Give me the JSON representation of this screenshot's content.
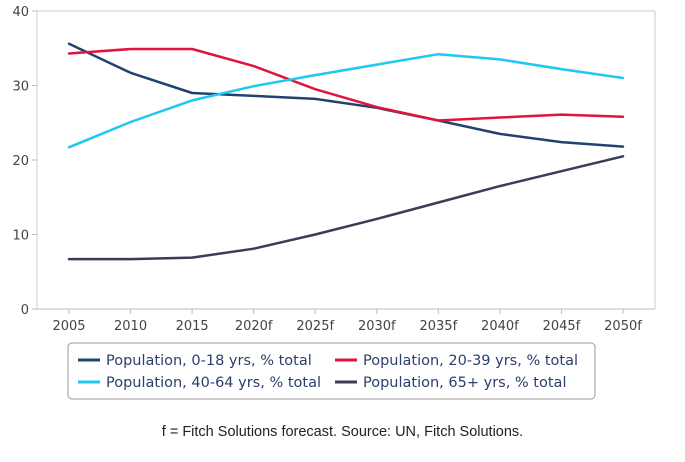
{
  "chart_data": {
    "type": "line",
    "categories": [
      "2005",
      "2010",
      "2015",
      "2020f",
      "2025f",
      "2030f",
      "2035f",
      "2040f",
      "2045f",
      "2050f"
    ],
    "ylim": [
      0,
      40
    ],
    "yticks": [
      "0",
      "10",
      "20",
      "30",
      "40"
    ],
    "grid": false,
    "legend": "bottom",
    "series": [
      {
        "name": "Population, 0-18 yrs, % total",
        "color": "#21426f",
        "values": [
          35.6,
          31.7,
          29.0,
          28.6,
          28.2,
          27.0,
          25.3,
          23.5,
          22.4,
          21.8
        ]
      },
      {
        "name": "Population, 20-39 yrs, % total",
        "color": "#e0143c",
        "values": [
          34.3,
          34.9,
          34.9,
          32.6,
          29.5,
          27.1,
          25.3,
          25.7,
          26.1,
          25.8
        ]
      },
      {
        "name": "Population, 40-64 yrs, % total",
        "color": "#1ec8f0",
        "values": [
          21.7,
          25.1,
          28.0,
          29.9,
          31.4,
          32.8,
          34.2,
          33.5,
          32.2,
          31.0
        ]
      },
      {
        "name": "Population, 65+ yrs, % total",
        "color": "#3a3d57",
        "values": [
          6.7,
          6.7,
          6.9,
          8.1,
          10.0,
          12.1,
          14.3,
          16.5,
          18.5,
          20.5
        ]
      }
    ]
  },
  "footnote": "f = Fitch Solutions forecast. Source: UN, Fitch Solutions."
}
